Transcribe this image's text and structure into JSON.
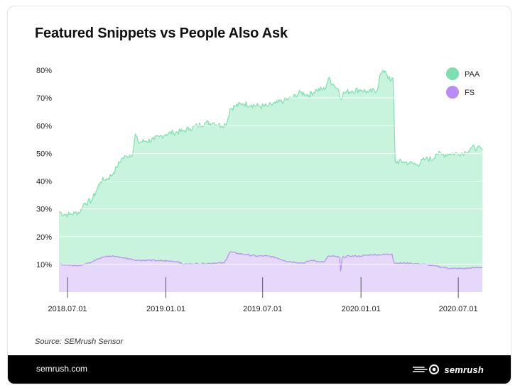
{
  "chart_data": {
    "type": "area",
    "title": "Featured Snippets vs People Also Ask",
    "xlabel": "",
    "ylabel": "",
    "ylim": [
      0,
      80
    ],
    "xlim": [
      "2018-06-15",
      "2020-08-15"
    ],
    "y_ticks": [
      10,
      20,
      30,
      40,
      50,
      60,
      70,
      80
    ],
    "y_tick_labels": [
      "10%",
      "20%",
      "30%",
      "40%",
      "50%",
      "60%",
      "70%",
      "80%"
    ],
    "x_ticks": [
      "2018-07-01",
      "2019-01-01",
      "2019-07-01",
      "2020-01-01",
      "2020-07-01"
    ],
    "x_tick_labels": [
      "2018.07.01",
      "2019.01.01",
      "2019.07.01",
      "2020.01.01",
      "2020.07.01"
    ],
    "legend_position": "top-right",
    "series": [
      {
        "name": "PAA",
        "color": "#7ee0b0",
        "fill": "#c8f3dd",
        "points": [
          [
            "2018-06-15",
            29
          ],
          [
            "2018-06-25",
            28
          ],
          [
            "2018-07-05",
            28
          ],
          [
            "2018-07-15",
            28.5
          ],
          [
            "2018-07-25",
            29
          ],
          [
            "2018-08-01",
            32
          ],
          [
            "2018-08-15",
            33
          ],
          [
            "2018-08-25",
            37
          ],
          [
            "2018-09-01",
            40
          ],
          [
            "2018-09-15",
            41
          ],
          [
            "2018-09-25",
            43
          ],
          [
            "2018-10-01",
            45
          ],
          [
            "2018-10-10",
            48
          ],
          [
            "2018-10-20",
            49
          ],
          [
            "2018-10-31",
            50
          ],
          [
            "2018-11-05",
            57
          ],
          [
            "2018-11-10",
            54
          ],
          [
            "2018-11-25",
            54.5
          ],
          [
            "2018-12-10",
            55
          ],
          [
            "2018-12-20",
            56
          ],
          [
            "2019-01-01",
            57
          ],
          [
            "2019-01-15",
            57.5
          ],
          [
            "2019-02-01",
            58
          ],
          [
            "2019-02-15",
            59
          ],
          [
            "2019-03-01",
            60
          ],
          [
            "2019-03-15",
            61
          ],
          [
            "2019-04-01",
            61
          ],
          [
            "2019-04-15",
            60
          ],
          [
            "2019-04-25",
            61
          ],
          [
            "2019-05-01",
            66
          ],
          [
            "2019-05-10",
            67
          ],
          [
            "2019-05-25",
            68
          ],
          [
            "2019-06-10",
            67.5
          ],
          [
            "2019-06-25",
            67
          ],
          [
            "2019-07-10",
            67
          ],
          [
            "2019-07-25",
            68
          ],
          [
            "2019-08-10",
            69
          ],
          [
            "2019-08-25",
            70
          ],
          [
            "2019-09-10",
            72
          ],
          [
            "2019-09-25",
            71
          ],
          [
            "2019-10-10",
            73
          ],
          [
            "2019-10-25",
            73
          ],
          [
            "2019-11-01",
            77
          ],
          [
            "2019-11-10",
            75
          ],
          [
            "2019-11-20",
            73
          ],
          [
            "2019-11-23",
            70
          ],
          [
            "2019-12-01",
            72
          ],
          [
            "2019-12-15",
            72.5
          ],
          [
            "2020-01-01",
            73
          ],
          [
            "2020-01-15",
            72
          ],
          [
            "2020-02-01",
            73
          ],
          [
            "2020-02-05",
            78
          ],
          [
            "2020-02-15",
            80
          ],
          [
            "2020-02-25",
            76
          ],
          [
            "2020-03-01",
            77
          ],
          [
            "2020-03-05",
            47
          ],
          [
            "2020-03-20",
            47
          ],
          [
            "2020-04-01",
            46.5
          ],
          [
            "2020-04-15",
            46
          ],
          [
            "2020-05-01",
            48
          ],
          [
            "2020-05-15",
            48
          ],
          [
            "2020-05-20",
            50
          ],
          [
            "2020-06-01",
            49.5
          ],
          [
            "2020-06-15",
            50
          ],
          [
            "2020-07-01",
            50
          ],
          [
            "2020-07-15",
            50.5
          ],
          [
            "2020-07-25",
            52
          ],
          [
            "2020-08-05",
            52
          ],
          [
            "2020-08-15",
            51
          ]
        ]
      },
      {
        "name": "FS",
        "color": "#b98cf5",
        "fill": "#e6d8fb",
        "points": [
          [
            "2018-06-15",
            10
          ],
          [
            "2018-07-01",
            9.8
          ],
          [
            "2018-07-15",
            9.6
          ],
          [
            "2018-07-31",
            10
          ],
          [
            "2018-08-10",
            10.5
          ],
          [
            "2018-08-25",
            12
          ],
          [
            "2018-09-10",
            12.8
          ],
          [
            "2018-09-25",
            13
          ],
          [
            "2018-10-10",
            12.5
          ],
          [
            "2018-10-25",
            12
          ],
          [
            "2018-11-10",
            11.5
          ],
          [
            "2018-12-01",
            11.5
          ],
          [
            "2018-12-20",
            11.3
          ],
          [
            "2019-01-10",
            11.2
          ],
          [
            "2019-01-25",
            11
          ],
          [
            "2019-02-01",
            10
          ],
          [
            "2019-02-20",
            10.2
          ],
          [
            "2019-03-15",
            10.3
          ],
          [
            "2019-04-01",
            10.5
          ],
          [
            "2019-04-20",
            10.5
          ],
          [
            "2019-05-01",
            14.5
          ],
          [
            "2019-05-15",
            14
          ],
          [
            "2019-06-01",
            13.5
          ],
          [
            "2019-06-20",
            13
          ],
          [
            "2019-07-10",
            13
          ],
          [
            "2019-07-25",
            12.5
          ],
          [
            "2019-08-10",
            11.5
          ],
          [
            "2019-08-20",
            11
          ],
          [
            "2019-09-01",
            10.8
          ],
          [
            "2019-09-15",
            10.5
          ],
          [
            "2019-10-01",
            11.5
          ],
          [
            "2019-10-15",
            11
          ],
          [
            "2019-10-25",
            11
          ],
          [
            "2019-11-01",
            13
          ],
          [
            "2019-11-15",
            12.8
          ],
          [
            "2019-11-22",
            12.5
          ],
          [
            "2019-11-24",
            7.5
          ],
          [
            "2019-11-27",
            12.5
          ],
          [
            "2019-12-10",
            13
          ],
          [
            "2020-01-01",
            13
          ],
          [
            "2020-01-20",
            13.5
          ],
          [
            "2020-02-10",
            13.5
          ],
          [
            "2020-02-28",
            13.8
          ],
          [
            "2020-03-03",
            10.5
          ],
          [
            "2020-04-01",
            10.4
          ],
          [
            "2020-05-01",
            10
          ],
          [
            "2020-05-15",
            9.5
          ],
          [
            "2020-06-01",
            9
          ],
          [
            "2020-06-20",
            8.5
          ],
          [
            "2020-07-10",
            8.5
          ],
          [
            "2020-08-01",
            8.8
          ],
          [
            "2020-08-15",
            9
          ]
        ]
      }
    ]
  },
  "source": "Source: SEMrush Sensor",
  "footer": {
    "site": "semrush.com",
    "brand": "semrush"
  }
}
